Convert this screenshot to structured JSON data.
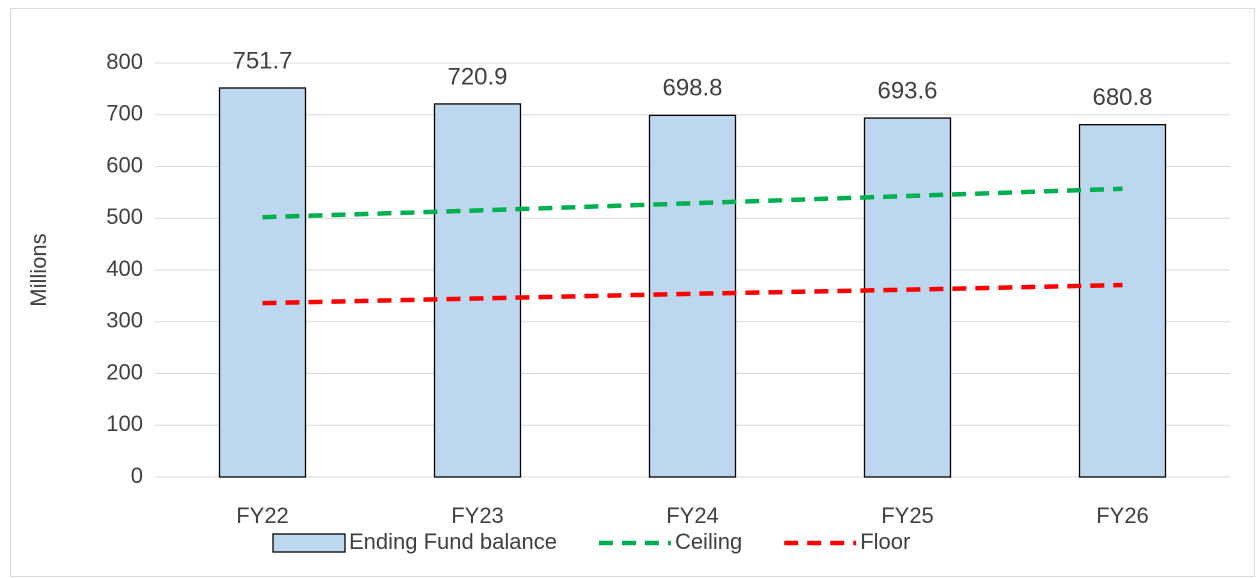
{
  "chart_data": {
    "type": "bar",
    "y_label": "Millions",
    "categories": [
      "FY22",
      "FY23",
      "FY24",
      "FY25",
      "FY26"
    ],
    "series": [
      {
        "name": "Ending Fund balance",
        "type": "bar",
        "color": "#bdd7ee",
        "values": [
          751.7,
          720.9,
          698.8,
          693.6,
          680.8
        ]
      },
      {
        "name": "Ceiling",
        "type": "line",
        "color": "#00b050",
        "values": [
          502,
          515,
          529,
          543,
          557
        ]
      },
      {
        "name": "Floor",
        "type": "line",
        "color": "#ff0000",
        "values": [
          336,
          345,
          354,
          362,
          371
        ]
      }
    ],
    "ylim": [
      0,
      800
    ],
    "yticks": [
      0,
      100,
      200,
      300,
      400,
      500,
      600,
      700,
      800
    ],
    "grid": true,
    "legend": "bottom"
  }
}
